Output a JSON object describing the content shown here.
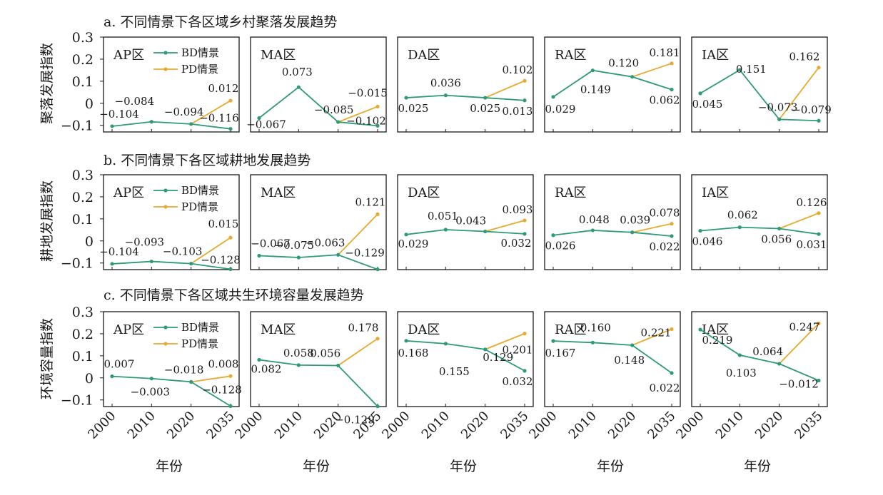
{
  "figure": {
    "ylabels": [
      "聚落发展指数",
      "耕地发展指数",
      "环境容量指数"
    ],
    "xlabel": "年份",
    "colors": {
      "BD": "#2e9a78",
      "PD": "#e8aa2e",
      "axis": "#1a1a1a"
    }
  },
  "chart_data": {
    "type": "line",
    "years": [
      "2000",
      "2010",
      "2020",
      "2035"
    ],
    "yticks": [
      "0.3",
      "0.2",
      "0.1",
      "0",
      "-0.1"
    ],
    "ylim": [
      -0.13,
      0.3
    ],
    "legend": [
      "BD情景",
      "PD情景"
    ],
    "rows": [
      {
        "title": "a. 不同情景下各区域乡村聚落发展趋势",
        "panels": [
          {
            "region": "AP区",
            "bd": [
              -0.104,
              -0.084,
              -0.094,
              -0.116
            ],
            "pd": [
              -0.094,
              0.012
            ],
            "labels": [
              "-0.104",
              "-0.084",
              "-0.094",
              "0.012",
              "-0.116"
            ]
          },
          {
            "region": "MA区",
            "bd": [
              -0.067,
              0.073,
              -0.085,
              -0.102
            ],
            "pd": [
              -0.085,
              -0.015
            ],
            "labels": [
              "-0.067",
              "0.073",
              "-0.085",
              "-0.015",
              "-0.102"
            ]
          },
          {
            "region": "DA区",
            "bd": [
              0.025,
              0.036,
              0.025,
              0.013
            ],
            "pd": [
              0.025,
              0.102
            ],
            "labels": [
              "0.025",
              "0.036",
              "0.025",
              "0.102",
              "0.013"
            ]
          },
          {
            "region": "RA区",
            "bd": [
              0.029,
              0.149,
              0.12,
              0.062
            ],
            "pd": [
              0.12,
              0.181
            ],
            "labels": [
              "0.029",
              "0.149",
              "0.120",
              "0.181",
              "0.062"
            ]
          },
          {
            "region": "IA区",
            "bd": [
              0.045,
              0.151,
              -0.073,
              -0.079
            ],
            "pd": [
              -0.073,
              0.162
            ],
            "labels": [
              "0.045",
              "0.151",
              "-0.073",
              "0.162",
              "-0.079"
            ]
          }
        ]
      },
      {
        "title": "b. 不同情景下各区域耕地发展趋势",
        "panels": [
          {
            "region": "AP区",
            "bd": [
              -0.104,
              -0.093,
              -0.103,
              -0.128
            ],
            "pd": [
              -0.103,
              0.015
            ],
            "labels": [
              "-0.104",
              "-0.093",
              "-0.103",
              "0.015",
              "-0.128"
            ]
          },
          {
            "region": "MA区",
            "bd": [
              -0.067,
              -0.075,
              -0.063,
              -0.129
            ],
            "pd": [
              -0.063,
              0.121
            ],
            "labels": [
              "-0.067",
              "-0.075",
              "-0.063",
              "0.121",
              "-0.129"
            ]
          },
          {
            "region": "DA区",
            "bd": [
              0.029,
              0.051,
              0.043,
              0.032
            ],
            "pd": [
              0.043,
              0.093
            ],
            "labels": [
              "0.029",
              "0.051",
              "0.043",
              "0.093",
              "0.032"
            ]
          },
          {
            "region": "RA区",
            "bd": [
              0.026,
              0.048,
              0.039,
              0.022
            ],
            "pd": [
              0.039,
              0.078
            ],
            "labels": [
              "0.026",
              "0.048",
              "0.039",
              "0.078",
              "0.022"
            ]
          },
          {
            "region": "IA区",
            "bd": [
              0.046,
              0.062,
              0.056,
              0.031
            ],
            "pd": [
              0.056,
              0.126
            ],
            "labels": [
              "0.046",
              "0.062",
              "0.056",
              "0.126",
              "0.031"
            ]
          }
        ]
      },
      {
        "title": "c. 不同情景下各区域共生环境容量发展趋势",
        "panels": [
          {
            "region": "AP区",
            "bd": [
              0.007,
              -0.003,
              -0.018,
              -0.128
            ],
            "pd": [
              -0.018,
              0.008
            ],
            "labels": [
              "0.007",
              "-0.003",
              "-0.018",
              "0.008",
              "-0.128"
            ]
          },
          {
            "region": "MA区",
            "bd": [
              0.082,
              0.058,
              0.056,
              -0.129
            ],
            "pd": [
              0.056,
              0.178
            ],
            "labels": [
              "0.082",
              "0.058",
              "0.056",
              "0.178",
              "-0.129"
            ]
          },
          {
            "region": "DA区",
            "bd": [
              0.168,
              0.155,
              0.129,
              0.032
            ],
            "pd": [
              0.129,
              0.201
            ],
            "labels": [
              "0.168",
              "0.155",
              "0.129",
              "0.201",
              "0.032"
            ]
          },
          {
            "region": "RA区",
            "bd": [
              0.167,
              0.16,
              0.148,
              0.022
            ],
            "pd": [
              0.148,
              0.221
            ],
            "labels": [
              "0.167",
              "0.160",
              "0.148",
              "0.221",
              "0.022"
            ]
          },
          {
            "region": "IA区",
            "bd": [
              0.219,
              0.103,
              0.064,
              -0.012
            ],
            "pd": [
              0.064,
              0.247
            ],
            "labels": [
              "0.219",
              "0.103",
              "0.064",
              "0.247",
              "-0.012"
            ]
          }
        ]
      }
    ]
  }
}
